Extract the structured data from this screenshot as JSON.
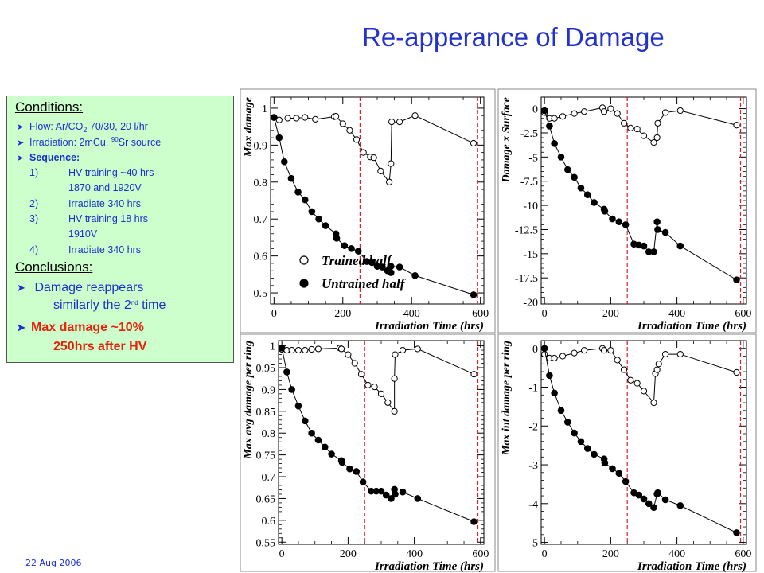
{
  "slide": {
    "title": "Re-apperance of Damage",
    "footer_date": "22 Aug 2006"
  },
  "conditions_box": {
    "heading": "Conditions:",
    "flow_prefix": "Flow: Ar/CO",
    "flow_sub": "2",
    "flow_suffix": " 70/30, 20 l/hr",
    "irr_prefix": "Irradiation: 2mCu, ",
    "irr_sup": "90",
    "irr_suffix": "Sr source",
    "sequence_label": "Sequence:",
    "steps": [
      {
        "num": "1)",
        "line1": "HV training ~40 hrs",
        "line2": "1870 and 1920V"
      },
      {
        "num": "2)",
        "line1": "Irradiate 340 hrs",
        "line2": ""
      },
      {
        "num": "3)",
        "line1": "HV training 18 hrs",
        "line2": "1910V"
      },
      {
        "num": "4)",
        "line1": "Irradiate 340 hrs",
        "line2": ""
      }
    ],
    "conclusions_heading": "Conclusions:",
    "conclusion1_line1": " Damage reappears",
    "conclusion1_line2_prefix": "similarly the 2",
    "conclusion1_sup": "nd",
    "conclusion1_line2_suffix": " time",
    "conclusion2_line1": "Max damage ~10%",
    "conclusion2_line2": "250hrs after HV"
  },
  "chart_data": [
    {
      "type": "scatter",
      "ylabel": "Max damage",
      "xlabel": "Irradiation Time (hrs)",
      "xlim": [
        -10,
        610
      ],
      "ylim": [
        0.47,
        1.03
      ],
      "yticks": [
        0.5,
        0.6,
        0.7,
        0.8,
        0.9,
        1
      ],
      "ytick_labels": [
        "0.5",
        "0.6",
        "0.7",
        "0.8",
        "0.9",
        "1"
      ],
      "xticks": [
        0,
        200,
        400,
        600
      ],
      "xtick_labels": [
        "0",
        "200",
        "400",
        "600"
      ],
      "vlines": [
        250,
        592
      ],
      "legend": [
        "Trained half",
        "Untrained half"
      ],
      "series": [
        {
          "name": "Trained half",
          "marker": "open",
          "x": [
            0,
            15,
            40,
            65,
            90,
            120,
            175,
            180,
            200,
            220,
            240,
            260,
            280,
            290,
            310,
            335,
            340,
            342,
            365,
            410,
            580
          ],
          "y": [
            0.975,
            0.968,
            0.973,
            0.973,
            0.975,
            0.97,
            0.977,
            0.978,
            0.958,
            0.94,
            0.915,
            0.88,
            0.868,
            0.866,
            0.83,
            0.8,
            0.85,
            0.963,
            0.963,
            0.98,
            0.905
          ]
        },
        {
          "name": "Untrained half",
          "marker": "filled",
          "x": [
            0,
            15,
            30,
            50,
            70,
            90,
            110,
            130,
            150,
            180,
            182,
            205,
            225,
            245,
            270,
            285,
            300,
            315,
            330,
            340,
            340,
            365,
            410,
            580
          ],
          "y": [
            0.975,
            0.92,
            0.855,
            0.81,
            0.773,
            0.752,
            0.72,
            0.7,
            0.682,
            0.66,
            0.648,
            0.628,
            0.62,
            0.613,
            0.585,
            0.582,
            0.572,
            0.57,
            0.56,
            0.555,
            0.572,
            0.57,
            0.547,
            0.495
          ]
        }
      ]
    },
    {
      "type": "scatter",
      "ylabel": "Damage x Surface",
      "xlabel": "Irradiation Time (hrs)",
      "xlim": [
        -10,
        610
      ],
      "ylim": [
        -20.2,
        1.2
      ],
      "yticks": [
        0,
        -2.5,
        -5,
        -7.5,
        -10,
        -12.5,
        -15,
        -17.5,
        -20
      ],
      "ytick_labels": [
        "0",
        "-2.5",
        "-5",
        "-7.5",
        "-10",
        "-12.5",
        "-15",
        "-17.5",
        "-20"
      ],
      "xticks": [
        0,
        200,
        400,
        600
      ],
      "xtick_labels": [
        "0",
        "200",
        "400",
        "600"
      ],
      "vlines": [
        250,
        592
      ],
      "series": [
        {
          "name": "Trained half",
          "marker": "open",
          "x": [
            0,
            15,
            30,
            55,
            90,
            120,
            175,
            180,
            200,
            220,
            240,
            260,
            280,
            300,
            330,
            340,
            342,
            365,
            410,
            580
          ],
          "y": [
            -0.4,
            -1.0,
            -1.0,
            -0.8,
            -0.5,
            -0.3,
            0.1,
            -0.3,
            0.0,
            -0.5,
            -1.5,
            -2.0,
            -2.1,
            -2.8,
            -3.5,
            -3.0,
            -1.5,
            -0.4,
            -0.2,
            -1.7
          ]
        },
        {
          "name": "Untrained half",
          "marker": "filled",
          "x": [
            0,
            15,
            30,
            50,
            70,
            90,
            110,
            130,
            150,
            180,
            182,
            205,
            225,
            245,
            270,
            285,
            300,
            315,
            330,
            340,
            342,
            365,
            410,
            580
          ],
          "y": [
            -0.2,
            -1.8,
            -3.6,
            -5.0,
            -6.3,
            -7.1,
            -8.2,
            -8.9,
            -9.7,
            -10.4,
            -10.6,
            -11.4,
            -11.7,
            -12.0,
            -14.0,
            -14.1,
            -14.2,
            -14.8,
            -14.8,
            -11.7,
            -12.5,
            -12.8,
            -14.2,
            -17.7
          ]
        }
      ]
    },
    {
      "type": "scatter",
      "ylabel": "Max avg damage per ring",
      "xlabel": "Irradiation Time (hrs)",
      "xlim": [
        -10,
        610
      ],
      "ylim": [
        0.545,
        1.012
      ],
      "yticks": [
        0.55,
        0.6,
        0.65,
        0.7,
        0.75,
        0.8,
        0.85,
        0.9,
        0.95,
        1
      ],
      "ytick_labels": [
        "0.55",
        "0.6",
        "0.65",
        "0.7",
        "0.75",
        "0.8",
        "0.85",
        "0.9",
        "0.95",
        "1"
      ],
      "xticks": [
        0,
        200,
        400,
        600
      ],
      "xtick_labels": [
        "0",
        "200",
        "400",
        "600"
      ],
      "vlines": [
        250,
        592
      ],
      "series": [
        {
          "name": "Trained half",
          "marker": "open",
          "x": [
            0,
            15,
            30,
            50,
            70,
            90,
            110,
            175,
            180,
            200,
            220,
            240,
            260,
            280,
            300,
            320,
            340,
            340,
            342,
            365,
            410,
            580
          ],
          "y": [
            0.992,
            0.99,
            0.99,
            0.99,
            0.99,
            0.992,
            0.993,
            0.995,
            0.993,
            0.98,
            0.96,
            0.935,
            0.91,
            0.906,
            0.89,
            0.87,
            0.85,
            0.925,
            0.98,
            0.99,
            0.993,
            0.935
          ]
        },
        {
          "name": "Untrained half",
          "marker": "filled",
          "x": [
            0,
            15,
            30,
            50,
            70,
            90,
            110,
            130,
            150,
            180,
            182,
            205,
            225,
            245,
            270,
            285,
            300,
            315,
            330,
            340,
            342,
            365,
            410,
            580
          ],
          "y": [
            0.995,
            0.94,
            0.9,
            0.862,
            0.828,
            0.8,
            0.784,
            0.768,
            0.752,
            0.737,
            0.733,
            0.718,
            0.712,
            0.688,
            0.667,
            0.667,
            0.667,
            0.658,
            0.65,
            0.671,
            0.66,
            0.665,
            0.65,
            0.597
          ]
        }
      ]
    },
    {
      "type": "scatter",
      "ylabel": "Max int damage per ring",
      "xlabel": "Irradiation Time (hrs)",
      "xlim": [
        -10,
        610
      ],
      "ylim": [
        -5.05,
        0.2
      ],
      "yticks": [
        0,
        -1,
        -2,
        -3,
        -4,
        -5
      ],
      "ytick_labels": [
        "0",
        "-1",
        "-2",
        "-3",
        "-4",
        "-5"
      ],
      "xticks": [
        0,
        200,
        400,
        600
      ],
      "xtick_labels": [
        "0",
        "200",
        "400",
        "600"
      ],
      "vlines": [
        250,
        592
      ],
      "series": [
        {
          "name": "Trained half",
          "marker": "open",
          "x": [
            0,
            15,
            30,
            55,
            90,
            120,
            175,
            180,
            200,
            220,
            240,
            260,
            280,
            300,
            330,
            335,
            340,
            345,
            365,
            410,
            580
          ],
          "y": [
            -0.15,
            -0.25,
            -0.25,
            -0.2,
            -0.12,
            -0.05,
            0.0,
            -0.05,
            -0.05,
            -0.3,
            -0.55,
            -0.82,
            -0.9,
            -1.1,
            -1.4,
            -0.65,
            -0.55,
            -0.4,
            -0.15,
            -0.15,
            -0.62
          ]
        },
        {
          "name": "Untrained half",
          "marker": "filled",
          "x": [
            0,
            15,
            30,
            50,
            70,
            90,
            110,
            130,
            150,
            180,
            182,
            205,
            225,
            245,
            270,
            285,
            300,
            315,
            330,
            340,
            342,
            365,
            410,
            580
          ],
          "y": [
            0.0,
            -0.7,
            -1.15,
            -1.6,
            -1.9,
            -2.18,
            -2.4,
            -2.58,
            -2.73,
            -2.85,
            -2.95,
            -3.1,
            -3.22,
            -3.43,
            -3.72,
            -3.78,
            -3.88,
            -4.0,
            -4.1,
            -3.75,
            -3.72,
            -3.9,
            -4.05,
            -4.75
          ]
        }
      ]
    }
  ]
}
